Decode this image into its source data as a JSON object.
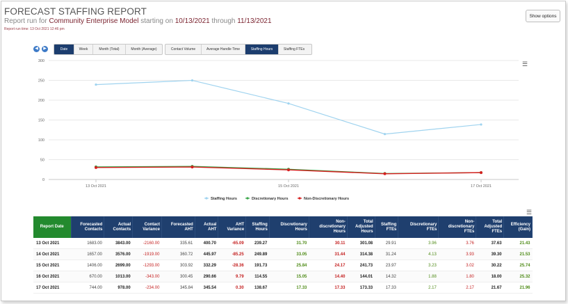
{
  "report": {
    "title": "FORECAST STAFFING REPORT",
    "subtitle_prefix": "Report run for",
    "model": "Community Enterprise Model",
    "starting_on": "starting on",
    "start_date": "10/13/2021",
    "through": "through",
    "end_date": "11/13/2021",
    "run_time": "Report run time: 13 Oct 2021 12:46 pm"
  },
  "toolbar": {
    "show_options": "Show options",
    "prev_icon": "chevron-left-icon",
    "next_icon": "chevron-right-icon",
    "period_tabs": [
      {
        "label": "Date",
        "active": true
      },
      {
        "label": "Week",
        "active": false
      },
      {
        "label": "Month (Total)",
        "active": false
      },
      {
        "label": "Month (Average)",
        "active": false
      }
    ],
    "metric_tabs": [
      {
        "label": "Contact Volume",
        "active": false
      },
      {
        "label": "Average Handle Time",
        "active": false
      },
      {
        "label": "Staffing Hours",
        "active": true
      },
      {
        "label": "Staffing FTEs",
        "active": false
      }
    ],
    "menu_icon": "hamburger-menu-icon"
  },
  "chart_data": {
    "type": "line",
    "x": [
      "13 Oct 2021",
      "14 Oct 2021",
      "15 Oct 2021",
      "16 Oct 2021",
      "17 Oct 2021"
    ],
    "x_tick_labels": [
      "13 Oct 2021",
      "15 Oct 2021",
      "17 Oct 2021"
    ],
    "ylim": [
      0,
      300
    ],
    "y_ticks": [
      0,
      50,
      100,
      150,
      200,
      250,
      300
    ],
    "grid": true,
    "legend_position": "bottom-center",
    "series": [
      {
        "name": "Staffing Hours",
        "color": "#9fd3ef",
        "values": [
          239.27,
          249.89,
          191.73,
          114.55,
          138.67
        ]
      },
      {
        "name": "Discretionary Hours",
        "color": "#3aa64a",
        "values": [
          31.7,
          33.05,
          25.84,
          15.05,
          17.33
        ]
      },
      {
        "name": "Non-Discretionary Hours",
        "color": "#d62020",
        "values": [
          30.11,
          31.44,
          24.17,
          14.4,
          17.33
        ]
      }
    ]
  },
  "table": {
    "headers": [
      "Report Date",
      "Forecasted Contacts",
      "Actual Contacts",
      "Contact Variance",
      "Forecasted AHT",
      "Actual AHT",
      "AHT Variance",
      "Staffing Hours",
      "Discretionary Hours",
      "Non-discretionary Hours",
      "Total Adjusted Hours",
      "Staffing FTEs",
      "Discretionary FTEs",
      "Non-discretionary FTEs",
      "Total Adjusted FTEs",
      "Efficiency (Gain)"
    ],
    "rows": [
      [
        "13 Oct 2021",
        "1683.00",
        "3843.00",
        "-2160.00",
        "335.61",
        "400.70",
        "-65.09",
        "239.27",
        "31.70",
        "30.11",
        "301.08",
        "29.91",
        "3.96",
        "3.76",
        "37.63",
        "21.43"
      ],
      [
        "14 Oct 2021",
        "1657.00",
        "3576.00",
        "-1919.00",
        "360.72",
        "445.97",
        "-85.25",
        "249.89",
        "33.05",
        "31.44",
        "314.38",
        "31.24",
        "4.13",
        "3.93",
        "39.30",
        "21.53"
      ],
      [
        "15 Oct 2021",
        "1406.00",
        "2699.00",
        "-1293.00",
        "303.92",
        "332.29",
        "-28.36",
        "191.73",
        "25.84",
        "24.17",
        "241.73",
        "23.97",
        "3.23",
        "3.02",
        "30.22",
        "25.74"
      ],
      [
        "16 Oct 2021",
        "670.00",
        "1013.00",
        "-343.00",
        "300.45",
        "290.66",
        "9.79",
        "114.55",
        "15.05",
        "14.40",
        "144.01",
        "14.32",
        "1.88",
        "1.80",
        "18.00",
        "25.32"
      ],
      [
        "17 Oct 2021",
        "744.00",
        "978.00",
        "-234.00",
        "345.84",
        "345.54",
        "0.30",
        "138.67",
        "17.33",
        "17.33",
        "173.33",
        "17.33",
        "2.17",
        "2.17",
        "21.67",
        "21.96"
      ]
    ]
  }
}
